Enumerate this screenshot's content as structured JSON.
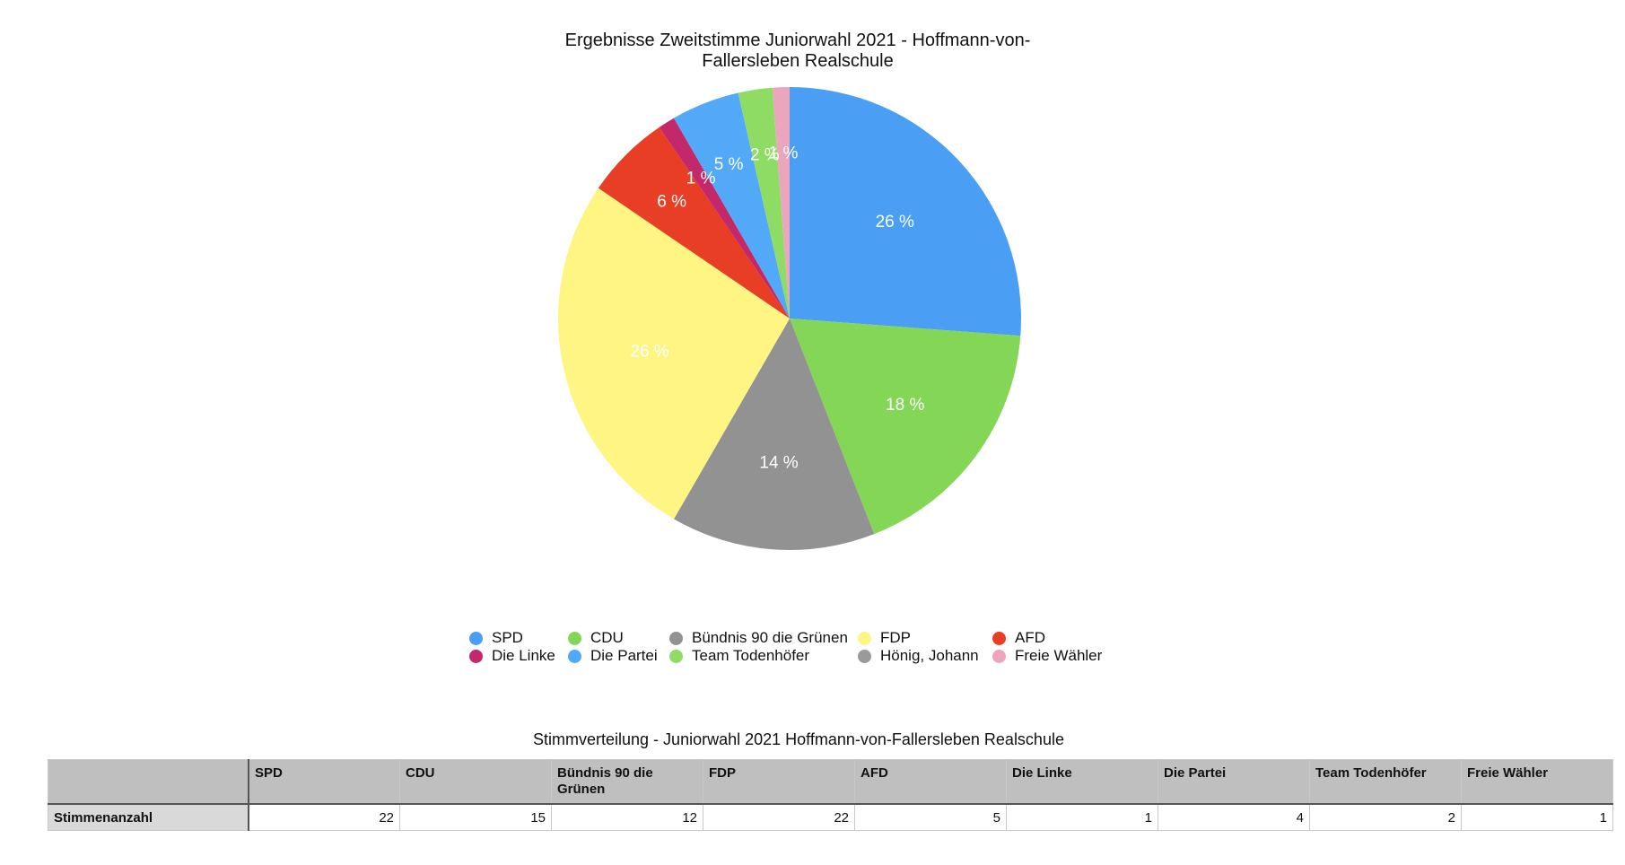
{
  "chart_data": {
    "type": "pie",
    "title": "Ergebnisse Zweitstimme Juniorwahl 2021 - Hoffmann-von-Fallersleben Realschule",
    "legend_position": "bottom",
    "slices": [
      {
        "name": "SPD",
        "value": 22,
        "label": "26 %",
        "color": "#4A9FF5"
      },
      {
        "name": "CDU",
        "value": 15,
        "label": "18 %",
        "color": "#84D657"
      },
      {
        "name": "Bündnis 90 die Grünen",
        "value": 12,
        "label": "14 %",
        "color": "#929292"
      },
      {
        "name": "FDP",
        "value": 22,
        "label": "26 %",
        "color": "#FEF583"
      },
      {
        "name": "AFD",
        "value": 5,
        "label": "6 %",
        "color": "#E83E26"
      },
      {
        "name": "Die Linke",
        "value": 1,
        "label": "1 %",
        "color": "#C3286B"
      },
      {
        "name": "Die Partei",
        "value": 4,
        "label": "5 %",
        "color": "#52A9F7"
      },
      {
        "name": "Team Todenhöfer",
        "value": 2,
        "label": "2 %",
        "color": "#8FDC64"
      },
      {
        "name": "Hönig, Johann",
        "value": 0,
        "label": "",
        "color": "#9A9A9A"
      },
      {
        "name": "Freie Wähler",
        "value": 1,
        "label": "1 %",
        "color": "#EBA6BE"
      }
    ]
  },
  "table": {
    "title": "Stimmverteilung - Juniorwahl 2021 Hoffmann-von-Fallersleben Realschule",
    "columns": [
      "SPD",
      "CDU",
      "Bündnis 90 die Grünen",
      "FDP",
      "AFD",
      "Die Linke",
      "Die Partei",
      "Team Todenhöfer",
      "Freie Wähler"
    ],
    "row_label": "Stimmenanzahl",
    "values": [
      "22",
      "15",
      "12",
      "22",
      "5",
      "1",
      "4",
      "2",
      "1"
    ]
  }
}
